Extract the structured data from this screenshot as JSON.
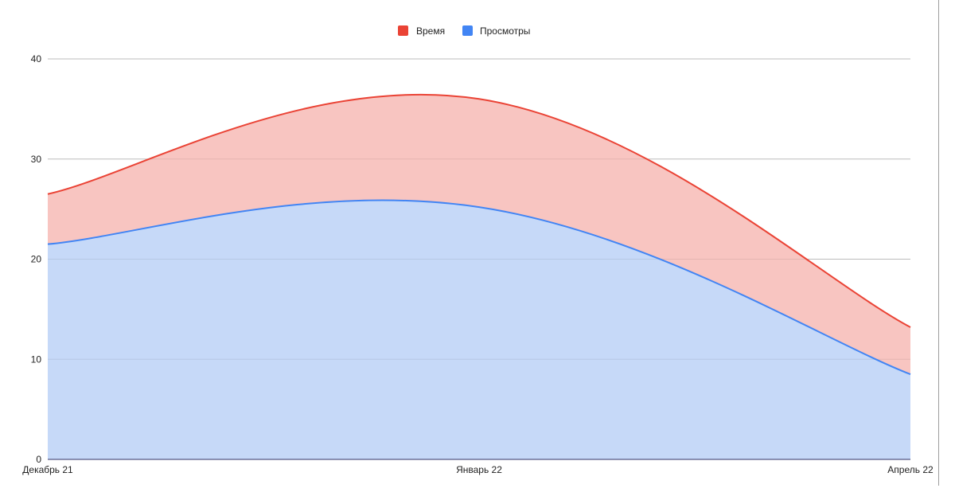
{
  "chart_data": {
    "type": "area",
    "stacked": true,
    "smooth": true,
    "x": [
      "Декабрь 21",
      "Январь 22",
      "Апрель 22"
    ],
    "series": [
      {
        "name": "Просмотры",
        "values": [
          21.5,
          25.2,
          8.5
        ],
        "color": "#4285f4",
        "fill": "#c6d9f8"
      },
      {
        "name": "Время",
        "values": [
          5.0,
          10.8,
          4.7
        ],
        "color": "#ea4335",
        "fill": "#f8c5c1"
      }
    ],
    "legend_order": [
      "Время",
      "Просмотры"
    ],
    "legend_position": "top-center",
    "yticks": [
      0,
      10,
      20,
      30,
      40
    ],
    "ylim": [
      0,
      40
    ],
    "grid": true,
    "title": "",
    "xlabel": "",
    "ylabel": ""
  }
}
